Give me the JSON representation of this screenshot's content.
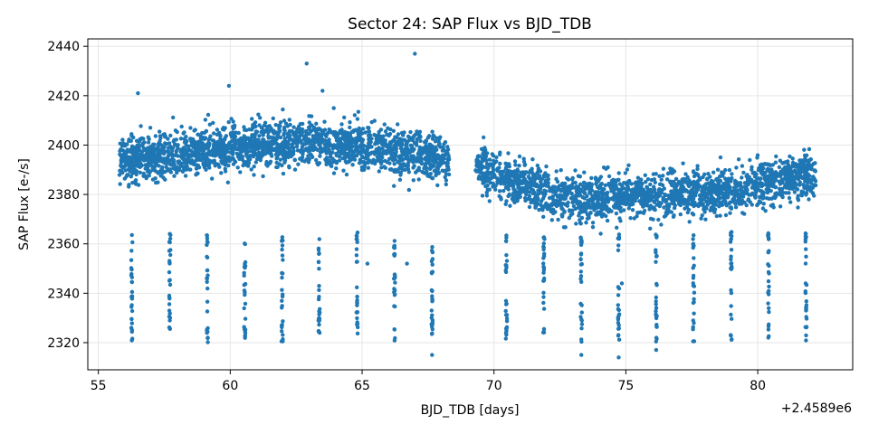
{
  "chart_data": {
    "type": "scatter",
    "title": "Sector 24: SAP Flux vs BJD_TDB",
    "xlabel": "BJD_TDB [days]",
    "ylabel": "SAP Flux [e-/s]",
    "x_offset_label": "+2.4589e6",
    "xlim": [
      54.6,
      83.6
    ],
    "ylim": [
      2309,
      2443
    ],
    "xticks": [
      55,
      60,
      65,
      70,
      75,
      80
    ],
    "yticks": [
      2320,
      2340,
      2360,
      2380,
      2400,
      2420,
      2440
    ],
    "grid": true,
    "marker_color": "#1f77b4",
    "baseline_trend": [
      [
        55.8,
        2393
      ],
      [
        57.0,
        2395
      ],
      [
        58.0,
        2396
      ],
      [
        59.0,
        2398
      ],
      [
        60.0,
        2399
      ],
      [
        61.0,
        2400
      ],
      [
        62.0,
        2401
      ],
      [
        63.0,
        2401
      ],
      [
        64.0,
        2400
      ],
      [
        65.0,
        2399
      ],
      [
        66.0,
        2398
      ],
      [
        67.0,
        2396
      ],
      [
        68.3,
        2394
      ],
      [
        69.3,
        2392
      ],
      [
        70.0,
        2389
      ],
      [
        71.0,
        2384
      ],
      [
        72.0,
        2380
      ],
      [
        73.0,
        2379
      ],
      [
        74.0,
        2379
      ],
      [
        75.0,
        2380
      ],
      [
        76.0,
        2380
      ],
      [
        77.0,
        2380
      ],
      [
        78.0,
        2381
      ],
      [
        79.0,
        2382
      ],
      [
        80.0,
        2384
      ],
      [
        81.0,
        2386
      ],
      [
        82.2,
        2389
      ]
    ],
    "scatter_sigma": 4.5,
    "data_gap": [
      68.3,
      69.3
    ],
    "transit_times": [
      56.27,
      57.71,
      59.13,
      60.55,
      61.97,
      63.37,
      64.81,
      66.23,
      67.65,
      70.47,
      71.89,
      73.31,
      74.73,
      76.15,
      77.57,
      78.99,
      80.41,
      81.83
    ],
    "transit_depth_range": [
      2320,
      2365
    ],
    "outliers": [
      [
        62.9,
        2433
      ],
      [
        67.0,
        2437
      ],
      [
        59.95,
        2424
      ],
      [
        56.5,
        2421
      ],
      [
        63.5,
        2422
      ],
      [
        56.27,
        2321
      ],
      [
        67.65,
        2315
      ],
      [
        73.31,
        2315
      ],
      [
        74.73,
        2314
      ],
      [
        76.15,
        2317
      ],
      [
        57.71,
        2329
      ],
      [
        65.2,
        2352
      ],
      [
        66.7,
        2352
      ],
      [
        74.85,
        2344
      ]
    ]
  }
}
